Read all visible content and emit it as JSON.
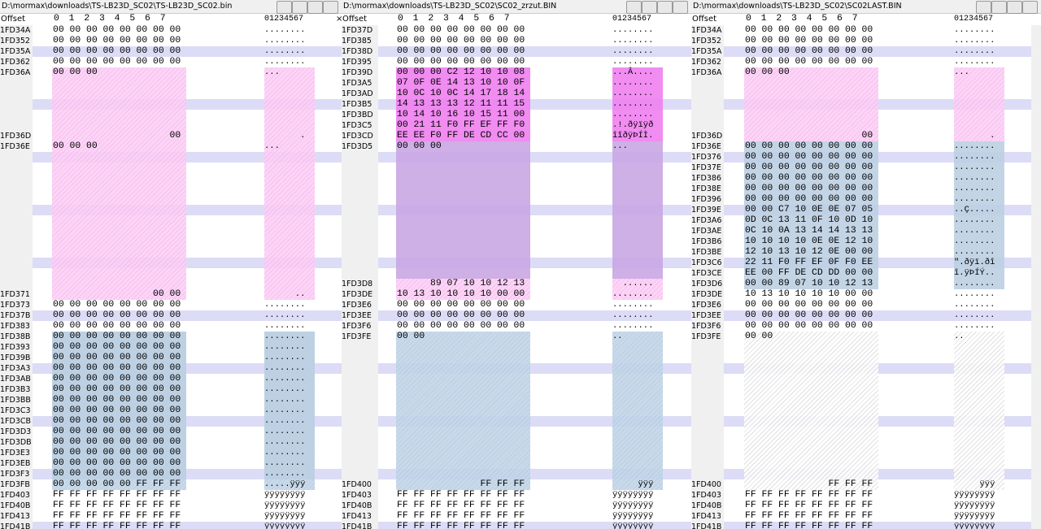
{
  "panes": [
    {
      "path": "D:\\mormax\\downloads\\TS-LB23D_SC02\\TS-LB23D_SC02.bin",
      "header_offset": "Offset",
      "header_cols": "0 1 2 3 4 5 6 7",
      "header_ascii": "01234567",
      "close_icon": "×",
      "rows": [
        {
          "offset": "1FD34A",
          "hex": "00 00 00 00 00 00 00 00",
          "ascii": "........"
        },
        {
          "offset": "1FD352",
          "hex": "00 00 00 00 00 00 00 00",
          "ascii": "........"
        },
        {
          "offset": "1FD35A",
          "hex": "00 00 00 00 00 00 00 00",
          "ascii": "........"
        },
        {
          "offset": "1FD362",
          "hex": "00 00 00 00 00 00 00 00",
          "ascii": "........"
        },
        {
          "offset": "1FD36A",
          "hex": "00 00 00",
          "ascii": "..."
        },
        null,
        null,
        null,
        null,
        null,
        {
          "offset": "1FD36D",
          "hex": "                     00",
          "ascii": "       ."
        },
        {
          "offset": "1FD36E",
          "hex": "00 00 00",
          "ascii": "..."
        },
        null,
        null,
        null,
        null,
        null,
        null,
        null,
        null,
        null,
        null,
        null,
        null,
        null,
        {
          "offset": "1FD371",
          "hex": "                  00 00",
          "ascii": "      .."
        },
        {
          "offset": "1FD373",
          "hex": "00 00 00 00 00 00 00 00",
          "ascii": "........"
        },
        {
          "offset": "1FD37B",
          "hex": "00 00 00 00 00 00 00 00",
          "ascii": "........"
        },
        {
          "offset": "1FD383",
          "hex": "00 00 00 00 00 00 00 00",
          "ascii": "........"
        },
        {
          "offset": "1FD38B",
          "hex": "00 00 00 00 00 00 00 00",
          "ascii": "........"
        },
        {
          "offset": "1FD393",
          "hex": "00 00 00 00 00 00 00 00",
          "ascii": "........"
        },
        {
          "offset": "1FD39B",
          "hex": "00 00 00 00 00 00 00 00",
          "ascii": "........"
        },
        {
          "offset": "1FD3A3",
          "hex": "00 00 00 00 00 00 00 00",
          "ascii": "........"
        },
        {
          "offset": "1FD3AB",
          "hex": "00 00 00 00 00 00 00 00",
          "ascii": "........"
        },
        {
          "offset": "1FD3B3",
          "hex": "00 00 00 00 00 00 00 00",
          "ascii": "........"
        },
        {
          "offset": "1FD3BB",
          "hex": "00 00 00 00 00 00 00 00",
          "ascii": "........"
        },
        {
          "offset": "1FD3C3",
          "hex": "00 00 00 00 00 00 00 00",
          "ascii": "........"
        },
        {
          "offset": "1FD3CB",
          "hex": "00 00 00 00 00 00 00 00",
          "ascii": "........"
        },
        {
          "offset": "1FD3D3",
          "hex": "00 00 00 00 00 00 00 00",
          "ascii": "........"
        },
        {
          "offset": "1FD3DB",
          "hex": "00 00 00 00 00 00 00 00",
          "ascii": "........"
        },
        {
          "offset": "1FD3E3",
          "hex": "00 00 00 00 00 00 00 00",
          "ascii": "........"
        },
        {
          "offset": "1FD3EB",
          "hex": "00 00 00 00 00 00 00 00",
          "ascii": "........"
        },
        {
          "offset": "1FD3F3",
          "hex": "00 00 00 00 00 00 00 00",
          "ascii": "........"
        },
        {
          "offset": "1FD3FB",
          "hex": "00 00 00 00 00 FF FF FF",
          "ascii": ".....ÿÿÿ"
        },
        {
          "offset": "1FD403",
          "hex": "FF FF FF FF FF FF FF FF",
          "ascii": "ÿÿÿÿÿÿÿÿ"
        },
        {
          "offset": "1FD40B",
          "hex": "FF FF FF FF FF FF FF FF",
          "ascii": "ÿÿÿÿÿÿÿÿ"
        },
        {
          "offset": "1FD413",
          "hex": "FF FF FF FF FF FF FF FF",
          "ascii": "ÿÿÿÿÿÿÿÿ"
        },
        {
          "offset": "1FD41B",
          "hex": "FF FF FF FF FF FF FF FF",
          "ascii": "ÿÿÿÿÿÿÿÿ"
        }
      ]
    },
    {
      "path": "D:\\mormax\\downloads\\TS-LB23D_SC02\\SC02_zrzut.BIN",
      "header_offset": "Offset",
      "header_cols": "0 1 2 3 4 5 6 7",
      "header_ascii": "01234567",
      "rows": [
        {
          "offset": "1FD37D",
          "hex": "00 00 00 00 00 00 00 00",
          "ascii": "........"
        },
        {
          "offset": "1FD385",
          "hex": "00 00 00 00 00 00 00 00",
          "ascii": "........"
        },
        {
          "offset": "1FD38D",
          "hex": "00 00 00 00 00 00 00 00",
          "ascii": "........"
        },
        {
          "offset": "1FD395",
          "hex": "00 00 00 00 00 00 00 00",
          "ascii": "........"
        },
        {
          "offset": "1FD39D",
          "hex": "00 00 00 C2 12 10 10 08",
          "ascii": "...Â...."
        },
        {
          "offset": "1FD3A5",
          "hex": "07 0F 0E 14 13 10 10 0F",
          "ascii": "........"
        },
        {
          "offset": "1FD3AD",
          "hex": "10 0C 10 0C 14 17 18 14",
          "ascii": "........"
        },
        {
          "offset": "1FD3B5",
          "hex": "14 13 13 13 12 11 11 15",
          "ascii": "........"
        },
        {
          "offset": "1FD3BD",
          "hex": "10 14 10 16 10 15 11 00",
          "ascii": "........"
        },
        {
          "offset": "1FD3C5",
          "hex": "00 21 11 F0 FF EF FF F0",
          "ascii": ".!.ðÿïÿð"
        },
        {
          "offset": "1FD3CD",
          "hex": "EE EE F0 FF DE CD CC 00",
          "ascii": "îîðÿÞÍÌ."
        },
        {
          "offset": "1FD3D5",
          "hex": "00 00 00",
          "ascii": "..."
        },
        null,
        null,
        null,
        null,
        null,
        null,
        null,
        null,
        null,
        null,
        null,
        null,
        {
          "offset": "1FD3D8",
          "hex": "      89 07 10 10 12 13",
          "ascii": "  ......"
        },
        {
          "offset": "1FD3DE",
          "hex": "10 13 10 10 10 10 00 00",
          "ascii": "........"
        },
        {
          "offset": "1FD3E6",
          "hex": "00 00 00 00 00 00 00 00",
          "ascii": "........"
        },
        {
          "offset": "1FD3EE",
          "hex": "00 00 00 00 00 00 00 00",
          "ascii": "........"
        },
        {
          "offset": "1FD3F6",
          "hex": "00 00 00 00 00 00 00 00",
          "ascii": "........"
        },
        {
          "offset": "1FD3FE",
          "hex": "00 00",
          "ascii": ".."
        },
        null,
        null,
        null,
        null,
        null,
        null,
        null,
        null,
        null,
        null,
        null,
        null,
        null,
        {
          "offset": "1FD400",
          "hex": "               FF FF FF",
          "ascii": "     ÿÿÿ"
        },
        {
          "offset": "1FD403",
          "hex": "FF FF FF FF FF FF FF FF",
          "ascii": "ÿÿÿÿÿÿÿÿ"
        },
        {
          "offset": "1FD40B",
          "hex": "FF FF FF FF FF FF FF FF",
          "ascii": "ÿÿÿÿÿÿÿÿ"
        },
        {
          "offset": "1FD413",
          "hex": "FF FF FF FF FF FF FF FF",
          "ascii": "ÿÿÿÿÿÿÿÿ"
        },
        {
          "offset": "1FD41B",
          "hex": "FF FF FF FF FF FF FF FF",
          "ascii": "ÿÿÿÿÿÿÿÿ"
        }
      ]
    },
    {
      "path": "D:\\mormax\\downloads\\TS-LB23D_SC02\\SC02LAST.BIN",
      "header_offset": "Offset",
      "header_cols": "0 1 2 3 4 5 6 7",
      "header_ascii": "01234567",
      "rows": [
        {
          "offset": "1FD34A",
          "hex": "00 00 00 00 00 00 00 00",
          "ascii": "........"
        },
        {
          "offset": "1FD352",
          "hex": "00 00 00 00 00 00 00 00",
          "ascii": "........"
        },
        {
          "offset": "1FD35A",
          "hex": "00 00 00 00 00 00 00 00",
          "ascii": "........"
        },
        {
          "offset": "1FD362",
          "hex": "00 00 00 00 00 00 00 00",
          "ascii": "........"
        },
        {
          "offset": "1FD36A",
          "hex": "00 00 00",
          "ascii": "..."
        },
        null,
        null,
        null,
        null,
        null,
        {
          "offset": "1FD36D",
          "hex": "                     00",
          "ascii": "       ."
        },
        {
          "offset": "1FD36E",
          "hex": "00 00 00 00 00 00 00 00",
          "ascii": "........"
        },
        {
          "offset": "1FD376",
          "hex": "00 00 00 00 00 00 00 00",
          "ascii": "........"
        },
        {
          "offset": "1FD37E",
          "hex": "00 00 00 00 00 00 00 00",
          "ascii": "........"
        },
        {
          "offset": "1FD386",
          "hex": "00 00 00 00 00 00 00 00",
          "ascii": "........"
        },
        {
          "offset": "1FD38E",
          "hex": "00 00 00 00 00 00 00 00",
          "ascii": "........"
        },
        {
          "offset": "1FD396",
          "hex": "00 00 00 00 00 00 00 00",
          "ascii": "........"
        },
        {
          "offset": "1FD39E",
          "hex": "00 00 C7 10 0E 0E 07 05",
          "ascii": "..Ç....."
        },
        {
          "offset": "1FD3A6",
          "hex": "0D 0C 13 11 0F 10 0D 10",
          "ascii": "........"
        },
        {
          "offset": "1FD3AE",
          "hex": "0C 10 0A 13 14 14 13 13",
          "ascii": "........"
        },
        {
          "offset": "1FD3B6",
          "hex": "10 10 10 10 0E 0E 12 10",
          "ascii": "........"
        },
        {
          "offset": "1FD3BE",
          "hex": "12 10 13 10 12 0E 00 00",
          "ascii": "........"
        },
        {
          "offset": "1FD3C6",
          "hex": "22 11 F0 FF EF 0F F0 EE",
          "ascii": "\".ðÿï.ðî"
        },
        {
          "offset": "1FD3CE",
          "hex": "EE 00 FF DE CD DD 00 00",
          "ascii": "î.ÿÞÍÝ.."
        },
        {
          "offset": "1FD3D6",
          "hex": "00 00 89 07 10 10 12 13",
          "ascii": "........"
        },
        {
          "offset": "1FD3DE",
          "hex": "10 13 10 10 10 10 00 00",
          "ascii": "........"
        },
        {
          "offset": "1FD3E6",
          "hex": "00 00 00 00 00 00 00 00",
          "ascii": "........"
        },
        {
          "offset": "1FD3EE",
          "hex": "00 00 00 00 00 00 00 00",
          "ascii": "........"
        },
        {
          "offset": "1FD3F6",
          "hex": "00 00 00 00 00 00 00 00",
          "ascii": "........"
        },
        {
          "offset": "1FD3FE",
          "hex": "00 00",
          "ascii": ".."
        },
        null,
        null,
        null,
        null,
        null,
        null,
        null,
        null,
        null,
        null,
        null,
        null,
        null,
        {
          "offset": "1FD400",
          "hex": "               FF FF FF",
          "ascii": "     ÿÿÿ"
        },
        {
          "offset": "1FD403",
          "hex": "FF FF FF FF FF FF FF FF",
          "ascii": "ÿÿÿÿÿÿÿÿ"
        },
        {
          "offset": "1FD40B",
          "hex": "FF FF FF FF FF FF FF FF",
          "ascii": "ÿÿÿÿÿÿÿÿ"
        },
        {
          "offset": "1FD413",
          "hex": "FF FF FF FF FF FF FF FF",
          "ascii": "ÿÿÿÿÿÿÿÿ"
        },
        {
          "offset": "1FD41B",
          "hex": "FF FF FF FF FF FF FF FF",
          "ascii": "ÿÿÿÿÿÿÿÿ"
        }
      ]
    }
  ]
}
